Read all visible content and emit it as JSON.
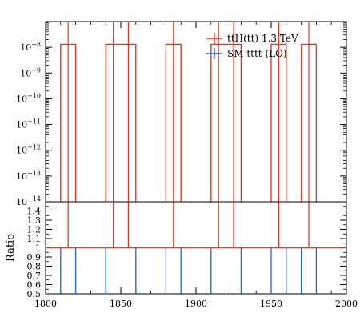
{
  "chart_data": [
    {
      "type": "histogram-step",
      "panel": "main",
      "yscale": "log",
      "xlim": [
        1800,
        2000
      ],
      "ylim": [
        1e-14,
        1e-07
      ],
      "y_ticks": [
        1e-14,
        1e-13,
        1e-12,
        1e-11,
        1e-10,
        1e-09,
        1e-08
      ],
      "y_tick_labels": [
        {
          "base": "10",
          "exp": "−14"
        },
        {
          "base": "10",
          "exp": "−13"
        },
        {
          "base": "10",
          "exp": "−12"
        },
        {
          "base": "10",
          "exp": "−11"
        },
        {
          "base": "10",
          "exp": "−10"
        },
        {
          "base": "10",
          "exp": "−9"
        },
        {
          "base": "10",
          "exp": "−8"
        }
      ],
      "legend": {
        "placement": "top-right",
        "entries": [
          {
            "label": "ttH(tt) 1.3 TeV",
            "color": "#e8351f"
          },
          {
            "label": "SM tttt (LO)",
            "color": "#1f5fe0"
          }
        ]
      },
      "series": [
        {
          "name": "ttH(tt) 1.3 TeV",
          "color": "#e8351f",
          "bins": [
            {
              "x0": 1810,
              "x1": 1820,
              "y": 1.3e-08
            },
            {
              "x0": 1840,
              "x1": 1860,
              "y": 1.3e-08
            },
            {
              "x0": 1880,
              "x1": 1890,
              "y": 1.3e-08
            },
            {
              "x0": 1910,
              "x1": 1930,
              "y": 1.3e-08
            },
            {
              "x0": 1950,
              "x1": 1960,
              "y": 1.3e-08
            },
            {
              "x0": 1970,
              "x1": 1980,
              "y": 1.3e-08
            }
          ],
          "error_x": [
            1815,
            1845,
            1855,
            1885,
            1915,
            1925,
            1955,
            1975
          ]
        },
        {
          "name": "SM tttt (LO)",
          "color": "#1f5fe0",
          "bins": []
        }
      ]
    },
    {
      "type": "ratio",
      "panel": "ratio",
      "ylabel": "Ratio",
      "xlim": [
        1800,
        2000
      ],
      "ylim": [
        0.5,
        1.5
      ],
      "y_ticks": [
        0.5,
        0.6,
        0.7,
        0.8,
        0.9,
        1,
        1.1,
        1.2,
        1.3,
        1.4
      ],
      "y_tick_labels": [
        "0.5",
        "0.6",
        "0.7",
        "0.8",
        "0.9",
        "1",
        "1.1",
        "1.2",
        "1.3",
        "1.4"
      ],
      "x_ticks": [
        1800,
        1850,
        1900,
        1950,
        2000
      ],
      "x_tick_labels": [
        "1800",
        "1850",
        "1900",
        "1950",
        "2000"
      ],
      "reference_line": {
        "y": 1,
        "color": "#e8351f"
      },
      "red_markers_x": [
        1815,
        1845,
        1855,
        1885,
        1915,
        1925,
        1955,
        1975
      ],
      "blue_edges_x": [
        1810,
        1820,
        1840,
        1860,
        1880,
        1890,
        1910,
        1930,
        1950,
        1960,
        1970,
        1980
      ]
    }
  ]
}
